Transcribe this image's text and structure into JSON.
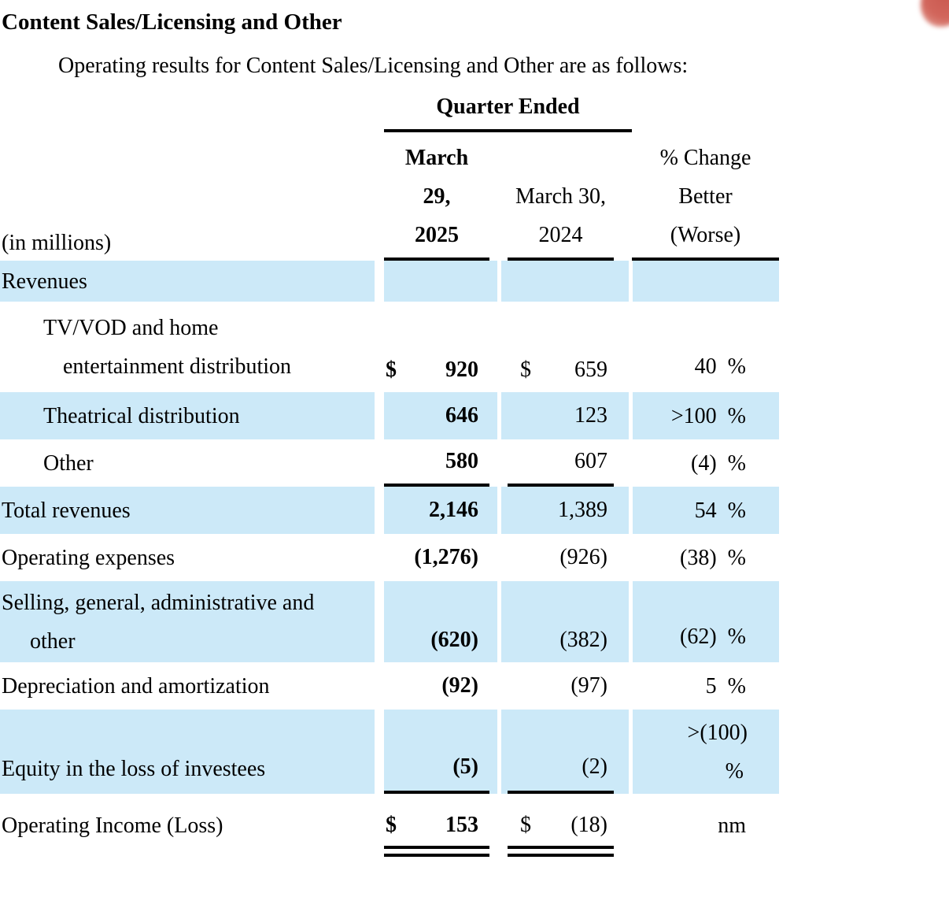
{
  "title": "Content Sales/Licensing and Other",
  "intro": "Operating results for Content Sales/Licensing and Other are as follows:",
  "table": {
    "quarter_ended": "Quarter Ended",
    "in_millions": "(in millions)",
    "col2025": [
      "March",
      "29,",
      "2025"
    ],
    "col2024": [
      "March 30,",
      "2024"
    ],
    "colchange": [
      "% Change",
      "Better",
      "(Worse)"
    ],
    "rows": {
      "revenues": {
        "label": "Revenues"
      },
      "tvvod": {
        "label1": "TV/VOD and home",
        "label2": "entertainment distribution",
        "cur": "$",
        "v2025": "920",
        "v2024": "659",
        "pct": "40",
        "pctsign": "%"
      },
      "theatrical": {
        "label": "Theatrical distribution",
        "v2025": "646",
        "v2024": "123",
        "pct": ">100",
        "pctsign": "%"
      },
      "other": {
        "label": "Other",
        "v2025": "580",
        "v2024": "607",
        "pct": "(4)",
        "pctsign": "%"
      },
      "total": {
        "label": "Total revenues",
        "v2025": "2,146",
        "v2024": "1,389",
        "pct": "54",
        "pctsign": "%"
      },
      "opex": {
        "label": "Operating expenses",
        "v2025": "(1,276)",
        "v2024": "(926)",
        "pct": "(38)",
        "pctsign": "%"
      },
      "sga": {
        "label1": "Selling, general, administrative and",
        "label2": "other",
        "v2025": "(620)",
        "v2024": "(382)",
        "pct": "(62)",
        "pctsign": "%"
      },
      "da": {
        "label": "Depreciation and amortization",
        "v2025": "(92)",
        "v2024": "(97)",
        "pct": "5",
        "pctsign": "%"
      },
      "equity": {
        "label": "Equity in the loss of investees",
        "v2025": "(5)",
        "v2024": "(2)",
        "pct_line1": ">(100)",
        "pct_line2": "%"
      },
      "oi": {
        "label": "Operating Income (Loss)",
        "cur": "$",
        "v2025": "153",
        "v2024": "(18)",
        "pct": "nm"
      }
    }
  },
  "colors": {
    "highlight_row": "#cce9f8",
    "rule": "#000000",
    "corner_mark": "#d2665c"
  }
}
